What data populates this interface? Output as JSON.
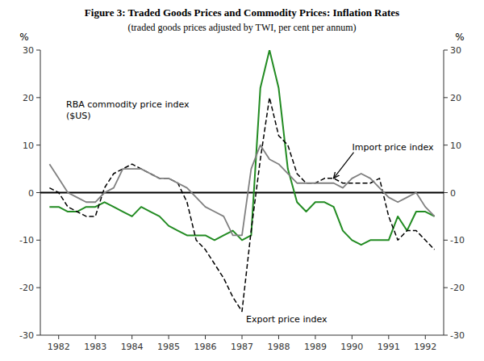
{
  "chart_data": {
    "type": "line",
    "title": "Figure 3: Traded Goods Prices and Commodity Prices: Inflation Rates",
    "subtitle": "(traded goods prices adjusted by TWI, per cent per annum)",
    "y_label": "%",
    "y2_label": "%",
    "xlim": [
      1981.5,
      1992.5
    ],
    "xticks": [
      1982,
      1983,
      1984,
      1985,
      1986,
      1987,
      1988,
      1989,
      1990,
      1991,
      1992
    ],
    "ylim": [
      -30,
      30
    ],
    "yticks": [
      -30,
      -20,
      -10,
      0,
      10,
      20,
      30
    ],
    "y2lim": [
      -30,
      30
    ],
    "y2ticks": [
      -30,
      -20,
      -10,
      0,
      10,
      20,
      30
    ],
    "grid": false,
    "x": [
      1981.75,
      1982.0,
      1982.25,
      1982.5,
      1982.75,
      1983.0,
      1983.25,
      1983.5,
      1983.75,
      1984.0,
      1984.25,
      1984.5,
      1984.75,
      1985.0,
      1985.25,
      1985.5,
      1985.75,
      1986.0,
      1986.25,
      1986.5,
      1986.75,
      1987.0,
      1987.25,
      1987.5,
      1987.75,
      1988.0,
      1988.25,
      1988.5,
      1988.75,
      1989.0,
      1989.25,
      1989.5,
      1989.75,
      1990.0,
      1990.25,
      1990.5,
      1990.75,
      1991.0,
      1991.25,
      1991.5,
      1991.75,
      1992.0,
      1992.25
    ],
    "series": [
      {
        "color": "#228B22",
        "line_style": "solid",
        "values": [
          -3,
          -3,
          -4,
          -4,
          -3,
          -3,
          -2,
          -3,
          -4,
          -5,
          -3,
          -4,
          -5,
          -7,
          -8,
          -9,
          -9,
          -9,
          -10,
          -9,
          -8,
          -10,
          -9,
          22,
          30,
          22,
          5,
          -2,
          -4,
          -2,
          -2,
          -3,
          -8,
          -10,
          -11,
          -10,
          -10,
          -10,
          -5,
          -8,
          -4,
          -4,
          -5
        ]
      },
      {
        "color": "#000000",
        "line_style": "dashed",
        "values": [
          1,
          0,
          -3,
          -4,
          -5,
          -5,
          1,
          4,
          5,
          6,
          5,
          4,
          3,
          3,
          2,
          -2,
          -10,
          -12,
          -15,
          -18,
          -22,
          -25,
          -8,
          7,
          20,
          12,
          10,
          4,
          2,
          2,
          3,
          3,
          2,
          2,
          2,
          2,
          3,
          -5,
          -10,
          -8,
          -8,
          -10,
          -12
        ]
      },
      {
        "color": "#808080",
        "line_style": "solid",
        "values": [
          6,
          3,
          0,
          -1,
          -2,
          -2,
          0,
          1,
          5,
          5,
          5,
          4,
          3,
          3,
          2,
          1,
          -1,
          -3,
          -4,
          -5,
          -9,
          -9,
          5,
          10,
          7,
          6,
          4,
          2,
          2,
          2,
          2,
          2,
          1,
          3,
          4,
          3,
          1,
          -1,
          -2,
          -1,
          0,
          -3,
          -5
        ]
      }
    ],
    "reference_lines": [
      {
        "y": 0,
        "color": "#000000"
      }
    ],
    "annotations": [
      "RBA commodity price index\n($US)",
      "Export price index",
      "Import price index"
    ]
  }
}
